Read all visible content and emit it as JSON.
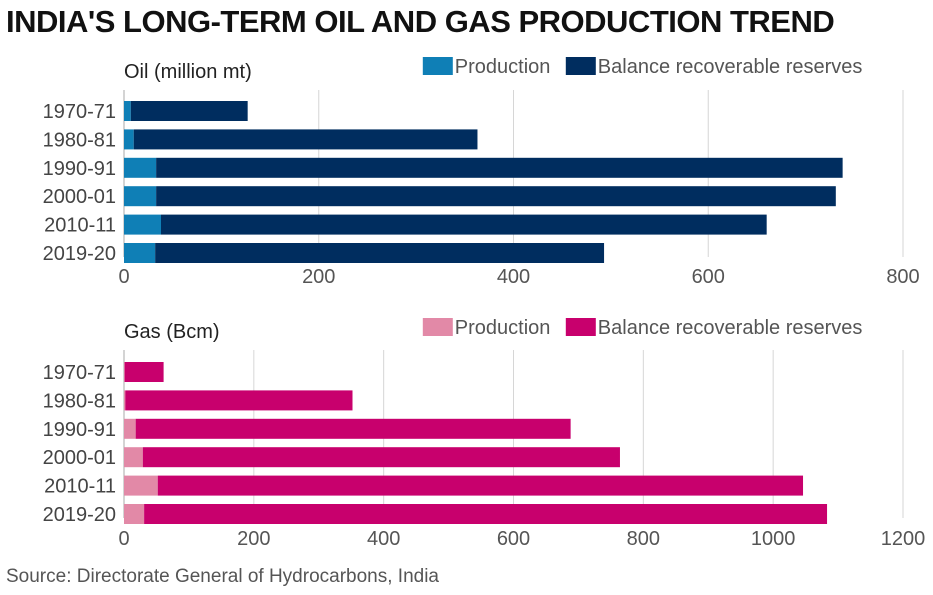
{
  "title": "INDIA'S LONG-TERM OIL AND GAS PRODUCTION TREND",
  "source": "Source: Directorate General of Hydrocarbons, India",
  "chart_data": [
    {
      "type": "bar",
      "orientation": "horizontal",
      "stacked": true,
      "subtitle": "Oil (million mt)",
      "categories": [
        "1970-71",
        "1980-81",
        "1990-91",
        "2000-01",
        "2010-11",
        "2019-20"
      ],
      "series": [
        {
          "name": "Production",
          "color": "#0f7fb6",
          "values": [
            7,
            10,
            33,
            33,
            38,
            32
          ]
        },
        {
          "name": "Balance recoverable reserves",
          "color": "#002d5f",
          "values": [
            120,
            353,
            705,
            698,
            622,
            461
          ]
        }
      ],
      "xlim": [
        0,
        800
      ],
      "ticks": [
        0,
        200,
        400,
        600,
        800
      ],
      "legend": "top-right",
      "grid": "vertical"
    },
    {
      "type": "bar",
      "orientation": "horizontal",
      "stacked": true,
      "subtitle": "Gas (Bcm)",
      "categories": [
        "1970-71",
        "1980-81",
        "1990-91",
        "2000-01",
        "2010-11",
        "2019-20"
      ],
      "series": [
        {
          "name": "Production",
          "color": "#e289a7",
          "values": [
            1,
            2,
            18,
            29,
            52,
            31
          ]
        },
        {
          "name": "Balance recoverable reserves",
          "color": "#c8006d",
          "values": [
            60,
            350,
            670,
            735,
            994,
            1052
          ]
        }
      ],
      "xlim": [
        0,
        1200
      ],
      "ticks": [
        0,
        200,
        400,
        600,
        800,
        1000,
        1200
      ],
      "legend": "top-right",
      "grid": "vertical"
    }
  ]
}
